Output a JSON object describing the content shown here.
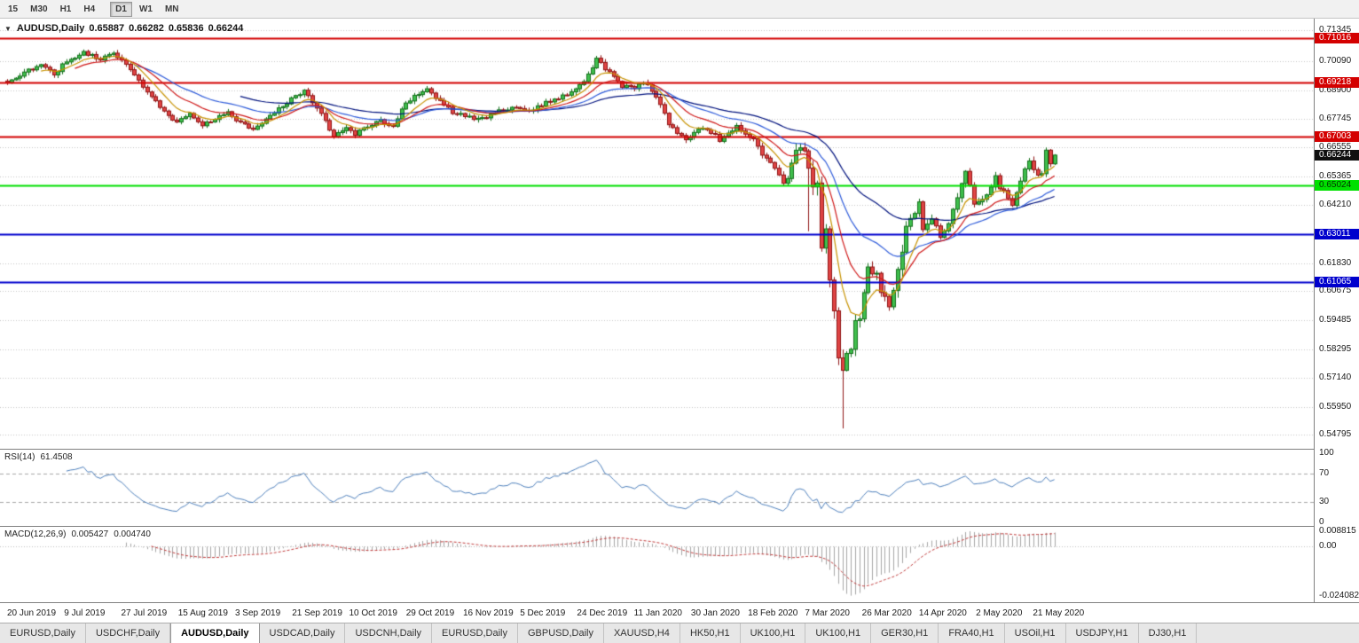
{
  "toolbar": {
    "timeframes": [
      {
        "label": "15",
        "active": false,
        "group": 1
      },
      {
        "label": "M30",
        "active": false,
        "group": 1
      },
      {
        "label": "H1",
        "active": false,
        "group": 1
      },
      {
        "label": "H4",
        "active": false,
        "group": 1
      },
      {
        "label": "D1",
        "active": true,
        "group": 2
      },
      {
        "label": "W1",
        "active": false,
        "group": 2
      },
      {
        "label": "MN",
        "active": false,
        "group": 2
      }
    ]
  },
  "chart": {
    "collapse_glyph": "▼",
    "symbol_label": "AUDUSD,Daily",
    "ohlc": {
      "open": "0.65887",
      "high": "0.66282",
      "low": "0.65836",
      "close": "0.66244"
    },
    "scale": {
      "price_top": 0.7172,
      "price_bottom": 0.543
    },
    "y_axis_labels": [
      "0.71345",
      "0.70090",
      "0.68900",
      "0.67745",
      "0.66555",
      "0.65365",
      "0.64210",
      "0.61830",
      "0.60675",
      "0.59485",
      "0.58295",
      "0.57140",
      "0.55950",
      "0.54795"
    ],
    "hidden_grid_prices": [
      0.6302
    ],
    "hlines": [
      {
        "price": 0.71016,
        "color": "#D40000",
        "width": 2
      },
      {
        "price": 0.69218,
        "color": "#D40000",
        "width": 2
      },
      {
        "price": 0.67003,
        "color": "#D40000",
        "width": 2
      },
      {
        "price": 0.65024,
        "color": "#00E000",
        "width": 2
      },
      {
        "price": 0.63011,
        "color": "#0000CD",
        "width": 2
      },
      {
        "price": 0.61065,
        "color": "#0000CD",
        "width": 2
      }
    ],
    "price_markers": [
      {
        "label": "0.71016",
        "price": 0.71016,
        "bg": "#D40000",
        "fg": "#FFFFFF"
      },
      {
        "label": "0.69218",
        "price": 0.69218,
        "bg": "#D40000",
        "fg": "#FFFFFF"
      },
      {
        "label": "0.67003",
        "price": 0.67003,
        "bg": "#D40000",
        "fg": "#FFFFFF"
      },
      {
        "label": "0.66244",
        "price": 0.66244,
        "bg": "#101010",
        "fg": "#FFFFFF"
      },
      {
        "label": "0.65024",
        "price": 0.65024,
        "bg": "#00E000",
        "fg": "#003300"
      },
      {
        "label": "0.63011",
        "price": 0.63011,
        "bg": "#0000CD",
        "fg": "#FFFFFF"
      },
      {
        "label": "0.61065",
        "price": 0.61065,
        "bg": "#0000CD",
        "fg": "#FFFFFF"
      }
    ],
    "date_labels": [
      "20 Jun 2019",
      "9 Jul 2019",
      "27 Jul 2019",
      "15 Aug 2019",
      "3 Sep 2019",
      "21 Sep 2019",
      "10 Oct 2019",
      "29 Oct 2019",
      "16 Nov 2019",
      "5 Dec 2019",
      "24 Dec 2019",
      "11 Jan 2020",
      "30 Jan 2020",
      "18 Feb 2020",
      "7 Mar 2020",
      "26 Mar 2020",
      "14 Apr 2020",
      "2 May 2020",
      "21 May 2020"
    ],
    "colors": {
      "up_fill": "#3FBF4D",
      "up_edge": "#14701B",
      "down_fill": "#E04545",
      "down_edge": "#8F1414",
      "grid": "#C6C6C6"
    }
  },
  "rsi": {
    "label": "RSI(14)",
    "value": "61.4508",
    "axis_values": [
      100,
      70,
      30,
      0
    ],
    "axis_labels": [
      "100",
      "70",
      "30",
      "0"
    ],
    "levels": [
      70,
      30
    ],
    "line_color": "#4F81BD"
  },
  "macd": {
    "label": "MACD(12,26,9)",
    "value_main": "0.005427",
    "value_signal": "0.004740",
    "axis_top": "0.008815",
    "axis_zero": "0.00",
    "axis_bottom": "-0.024082",
    "hist_color": "#A6A6A6",
    "signal_color": "#C23B3B"
  },
  "tabs": {
    "active_index": 2,
    "items": [
      {
        "label": "EURUSD,Daily"
      },
      {
        "label": "USDCHF,Daily"
      },
      {
        "label": "AUDUSD,Daily"
      },
      {
        "label": "USDCAD,Daily"
      },
      {
        "label": "USDCNH,Daily"
      },
      {
        "label": "EURUSD,Daily"
      },
      {
        "label": "GBPUSD,Daily"
      },
      {
        "label": "XAUUSD,H4"
      },
      {
        "label": "HK50,H1"
      },
      {
        "label": "UK100,H1"
      },
      {
        "label": "UK100,H1"
      },
      {
        "label": "GER30,H1"
      },
      {
        "label": "FRA40,H1"
      },
      {
        "label": "USOil,H1"
      },
      {
        "label": "USDJPY,H1"
      },
      {
        "label": "DJ30,H1"
      }
    ]
  },
  "chart_data": {
    "type": "candlestick",
    "symbol": "AUDUSD",
    "timeframe": "Daily",
    "num_candles": 248,
    "close_anchors": [
      [
        0,
        0.692
      ],
      [
        4,
        0.696
      ],
      [
        8,
        0.7
      ],
      [
        11,
        0.6955
      ],
      [
        14,
        0.701
      ],
      [
        18,
        0.7042
      ],
      [
        22,
        0.702
      ],
      [
        25,
        0.704
      ],
      [
        28,
        0.699
      ],
      [
        31,
        0.693
      ],
      [
        34,
        0.6862
      ],
      [
        37,
        0.68
      ],
      [
        40,
        0.676
      ],
      [
        43,
        0.6792
      ],
      [
        46,
        0.6745
      ],
      [
        49,
        0.6775
      ],
      [
        52,
        0.68
      ],
      [
        55,
        0.6755
      ],
      [
        58,
        0.6728
      ],
      [
        61,
        0.677
      ],
      [
        64,
        0.6812
      ],
      [
        67,
        0.6855
      ],
      [
        70,
        0.6886
      ],
      [
        73,
        0.682
      ],
      [
        75,
        0.676
      ],
      [
        77,
        0.67
      ],
      [
        80,
        0.674
      ],
      [
        82,
        0.6712
      ],
      [
        85,
        0.6745
      ],
      [
        88,
        0.6765
      ],
      [
        91,
        0.6742
      ],
      [
        94,
        0.684
      ],
      [
        97,
        0.6875
      ],
      [
        99,
        0.689
      ],
      [
        102,
        0.6845
      ],
      [
        105,
        0.68
      ],
      [
        108,
        0.6785
      ],
      [
        111,
        0.677
      ],
      [
        114,
        0.679
      ],
      [
        117,
        0.681
      ],
      [
        120,
        0.6826
      ],
      [
        123,
        0.68
      ],
      [
        126,
        0.683
      ],
      [
        129,
        0.6852
      ],
      [
        132,
        0.687
      ],
      [
        134,
        0.689
      ],
      [
        136,
        0.693
      ],
      [
        138,
        0.6985
      ],
      [
        139,
        0.702
      ],
      [
        141,
        0.698
      ],
      [
        143,
        0.695
      ],
      [
        145,
        0.6905
      ],
      [
        148,
        0.69
      ],
      [
        150,
        0.6925
      ],
      [
        152,
        0.689
      ],
      [
        154,
        0.6826
      ],
      [
        156,
        0.6755
      ],
      [
        158,
        0.671
      ],
      [
        160,
        0.669
      ],
      [
        162,
        0.672
      ],
      [
        164,
        0.674
      ],
      [
        166,
        0.672
      ],
      [
        168,
        0.6685
      ],
      [
        170,
        0.672
      ],
      [
        172,
        0.674
      ],
      [
        174,
        0.6715
      ],
      [
        176,
        0.669
      ],
      [
        178,
        0.662
      ],
      [
        180,
        0.66
      ],
      [
        183,
        0.6515
      ],
      [
        184,
        0.654
      ],
      [
        186,
        0.6625
      ],
      [
        188,
        0.6645
      ],
      [
        189,
        0.658
      ],
      [
        190,
        0.65
      ],
      [
        191,
        0.6495
      ],
      [
        192,
        0.623
      ],
      [
        193,
        0.634
      ],
      [
        194,
        0.612
      ],
      [
        195,
        0.599
      ],
      [
        196,
        0.579
      ],
      [
        197,
        0.574
      ],
      [
        198,
        0.58
      ],
      [
        199,
        0.5825
      ],
      [
        200,
        0.5965
      ],
      [
        201,
        0.595
      ],
      [
        202,
        0.6065
      ],
      [
        203,
        0.6165
      ],
      [
        204,
        0.6155
      ],
      [
        205,
        0.6135
      ],
      [
        206,
        0.607
      ],
      [
        207,
        0.6055
      ],
      [
        208,
        0.599
      ],
      [
        209,
        0.609
      ],
      [
        210,
        0.617
      ],
      [
        211,
        0.623
      ],
      [
        212,
        0.6335
      ],
      [
        214,
        0.639
      ],
      [
        215,
        0.644
      ],
      [
        216,
        0.632
      ],
      [
        218,
        0.6365
      ],
      [
        220,
        0.629
      ],
      [
        222,
        0.634
      ],
      [
        224,
        0.646
      ],
      [
        226,
        0.655
      ],
      [
        227,
        0.651
      ],
      [
        228,
        0.6425
      ],
      [
        230,
        0.645
      ],
      [
        232,
        0.649
      ],
      [
        233,
        0.653
      ],
      [
        234,
        0.649
      ],
      [
        236,
        0.645
      ],
      [
        237,
        0.6415
      ],
      [
        239,
        0.6525
      ],
      [
        240,
        0.656
      ],
      [
        241,
        0.6595
      ],
      [
        242,
        0.656
      ],
      [
        243,
        0.6535
      ],
      [
        244,
        0.654
      ],
      [
        245,
        0.6645
      ],
      [
        246,
        0.6589
      ],
      [
        247,
        0.66244
      ]
    ],
    "special_lows": [
      {
        "index": 189,
        "low": 0.6313
      },
      {
        "index": 197,
        "low": 0.5506
      }
    ],
    "volatility": [
      {
        "from": 0,
        "to": 182,
        "v": 0.002
      },
      {
        "from": 183,
        "to": 185,
        "v": 0.0035
      },
      {
        "from": 186,
        "to": 212,
        "v": 0.006
      },
      {
        "from": 213,
        "to": 247,
        "v": 0.003
      }
    ],
    "indicators": {
      "rsi_period": 14,
      "macd_params": [
        12,
        26,
        9
      ],
      "mas": [
        {
          "period": 8,
          "color": "#C79200"
        },
        {
          "period": 16,
          "color": "#D01818"
        },
        {
          "period": 30,
          "color": "#2E5BDA"
        },
        {
          "period": 55,
          "color": "#00127E"
        }
      ]
    },
    "key_levels": [
      0.71016,
      0.69218,
      0.67003,
      0.65024,
      0.63011,
      0.61065
    ],
    "last_close": 0.66244
  }
}
